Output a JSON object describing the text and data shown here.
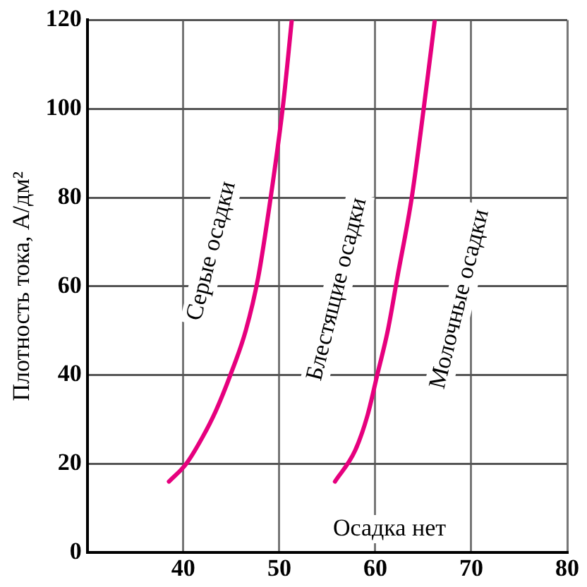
{
  "chart_data": {
    "type": "line",
    "ylabel": "Плотность тока, А/дм²",
    "xlim": [
      30,
      80
    ],
    "xticks": [
      40,
      50,
      60,
      70,
      80
    ],
    "ylim": [
      0,
      120
    ],
    "yticks": [
      0,
      20,
      40,
      60,
      80,
      100,
      120
    ],
    "grid": true,
    "legend": false,
    "marker": "none",
    "line_style": "solid",
    "series": [
      {
        "color": "#e6007e",
        "x": [
          38.5,
          40.3,
          42,
          43.4,
          44.9,
          46.5,
          47.8,
          49.1,
          50.4,
          51.3
        ],
        "values": [
          16,
          20,
          26,
          32,
          40,
          50,
          62,
          80,
          101,
          120
        ]
      },
      {
        "color": "#e6007e",
        "x": [
          55.8,
          57.9,
          59.2,
          60.2,
          61.3,
          62.3,
          63.8,
          65.1,
          66.2
        ],
        "values": [
          16,
          23,
          31,
          40,
          50,
          62,
          80,
          101,
          120
        ]
      }
    ],
    "annotations": [
      "Серые осадки",
      "Блестящие осадки",
      "Молочные осадки",
      "Осадка нет"
    ]
  }
}
